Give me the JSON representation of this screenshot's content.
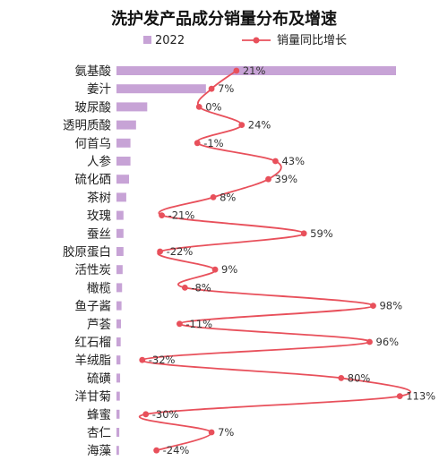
{
  "chart_data": {
    "type": "bar",
    "title": "洗护发产品成分销量分布及增速",
    "categories": [
      "氨基酸",
      "姜汁",
      "玻尿酸",
      "透明质酸",
      "何首乌",
      "人参",
      "硫化硒",
      "茶树",
      "玫瑰",
      "蚕丝",
      "胶原蛋白",
      "活性炭",
      "橄榄",
      "鱼子酱",
      "芦荟",
      "红石榴",
      "羊绒脂",
      "硫磺",
      "洋甘菊",
      "蜂蜜",
      "杏仁",
      "海藻"
    ],
    "series": [
      {
        "name": "2022",
        "type": "bar",
        "color": "#c7a3d6",
        "values": [
          100,
          32,
          11,
          7,
          5,
          5,
          4.5,
          3.5,
          2.5,
          2.5,
          2.5,
          2.2,
          2,
          1.8,
          1.6,
          1.5,
          1.4,
          1.3,
          1.2,
          1.1,
          1,
          0.9
        ]
      },
      {
        "name": "销量同比增长",
        "type": "line",
        "color": "#e8505b",
        "values": [
          21,
          7,
          0,
          24,
          -1,
          43,
          39,
          8,
          -21,
          59,
          -22,
          9,
          -8,
          98,
          -11,
          96,
          -32,
          80,
          113,
          -30,
          7,
          -24
        ],
        "labels": [
          "21%",
          "7%",
          "0%",
          "24%",
          "-1%",
          "43%",
          "39%",
          "8%",
          "-21%",
          "59%",
          "-22%",
          "9%",
          "-8%",
          "98%",
          "-11%",
          "96%",
          "-32%",
          "80%",
          "113%",
          "-30%",
          "7%",
          "-24%"
        ]
      }
    ],
    "bar_xlim": [
      0,
      100
    ],
    "line_xlim": [
      -45,
      125
    ],
    "grid": false,
    "legend": "top"
  }
}
